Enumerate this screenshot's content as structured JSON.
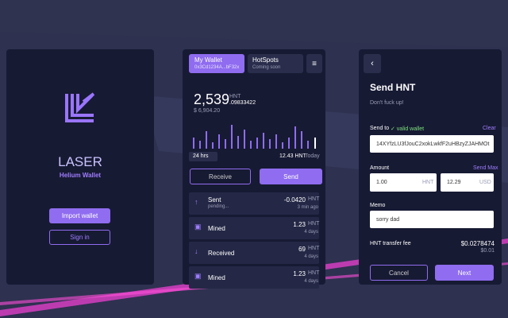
{
  "welcome": {
    "title": "LASER",
    "subtitle": "Helium Wallet",
    "import_button": "Import wallet",
    "signin_button": "Sign in"
  },
  "wallet": {
    "tabs": [
      {
        "title": "My Wallet",
        "subtitle": "0x3Cd1234A...bF32x"
      },
      {
        "title": "HotSpots",
        "subtitle": "Coming soon"
      }
    ],
    "balance": "2,539",
    "balance_unit": "HNT",
    "balance_fraction": ".09833422",
    "balance_usd": "$ 6,904.20",
    "period": "24 hrs",
    "period_total": "12.43 HNT",
    "period_label": "Today",
    "receive_button": "Receive",
    "send_button": "Send",
    "transactions": [
      {
        "label": "Sent",
        "sub": "pending...",
        "amount": "-0.0420",
        "unit": "HNT",
        "time": "3 min ago"
      },
      {
        "label": "Mined",
        "sub": "",
        "amount": "1.23",
        "unit": "HNT",
        "time": "4 days"
      },
      {
        "label": "Received",
        "sub": "",
        "amount": "69",
        "unit": "HNT",
        "time": "4 days"
      },
      {
        "label": "Mined",
        "sub": "",
        "amount": "1.23",
        "unit": "HNT",
        "time": "4 days"
      }
    ]
  },
  "send": {
    "title": "Send HNT",
    "subtitle": "Don't fuck up!",
    "send_to_label": "Send to",
    "valid": "✓ valid wallet",
    "clear": "Clear",
    "address": "14XYfzLU3fJouC2xokLwkfF2uHBzyZJAHMOt",
    "amount_label": "Amount",
    "send_max": "Send Max",
    "amount_hnt": "1.00",
    "amount_hnt_unit": "HNT",
    "amount_usd": "12.29",
    "amount_usd_unit": "USD",
    "memo_label": "Memo",
    "memo": "sorry dad",
    "fee_label": "HNT transfer fee",
    "fee_hnt": "$0.0278474",
    "fee_usd": "$0.01",
    "cancel_button": "Cancel",
    "next_button": "Next"
  }
}
